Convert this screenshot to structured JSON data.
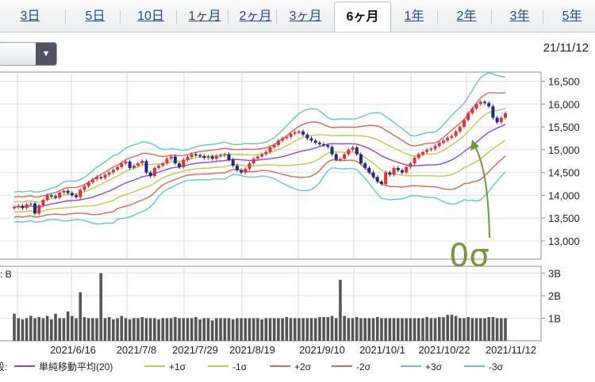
{
  "tabs": [
    {
      "label": "3日",
      "active": false
    },
    {
      "label": "5日",
      "active": false
    },
    {
      "label": "10日",
      "active": false
    },
    {
      "label": "1ヶ月",
      "active": false
    },
    {
      "label": "2ヶ月",
      "active": false
    },
    {
      "label": "3ヶ月",
      "active": false
    },
    {
      "label": "6ヶ月",
      "active": true
    },
    {
      "label": "1年",
      "active": false
    },
    {
      "label": "2年",
      "active": false
    },
    {
      "label": "3年",
      "active": false
    },
    {
      "label": "5年",
      "active": false
    }
  ],
  "dropdown": {
    "arrow_icon": "triangle-down-icon"
  },
  "date_label": "21/11/12",
  "annotation": {
    "text": "0σ",
    "color": "#6f9a3a"
  },
  "legend": {
    "prefix": "段:",
    "items": [
      {
        "label": "単純移動平均(20)",
        "color": "#a040d0"
      },
      {
        "label": "+1σ",
        "color": "#b8d040"
      },
      {
        "label": "-1σ",
        "color": "#b8d040"
      },
      {
        "label": "+2σ",
        "color": "#e06848"
      },
      {
        "label": "-2σ",
        "color": "#e06848"
      },
      {
        "label": "+3σ",
        "color": "#58c8d8"
      },
      {
        "label": "-3σ",
        "color": "#58c8d8"
      }
    ]
  },
  "volume_unit_label": "z: B",
  "chart_data": [
    {
      "type": "candlestick",
      "ylim": [
        12600,
        16700
      ],
      "y_ticks": [
        "16,500",
        "16,000",
        "15,500",
        "15,000",
        "14,500",
        "14,000",
        "13,500",
        "13,000"
      ],
      "y_tick_values": [
        16500,
        16000,
        15500,
        15000,
        14500,
        14000,
        13500,
        13000
      ],
      "x_ticks": [
        "2021/6/16",
        "2021/7/8",
        "2021/7/29",
        "2021/8/19",
        "2021/9/10",
        "2021/10/1",
        "2021/10/22",
        "2021/11/12"
      ],
      "up_color": "#e0303a",
      "down_color": "#1a2a88",
      "close": [
        13740,
        13770,
        13720,
        13800,
        13820,
        13600,
        13780,
        13900,
        14000,
        13980,
        13950,
        14060,
        14100,
        14050,
        14000,
        13960,
        14120,
        14200,
        14280,
        14350,
        14400,
        14380,
        14450,
        14500,
        14560,
        14620,
        14700,
        14740,
        14600,
        14650,
        14700,
        14750,
        14500,
        14420,
        14600,
        14650,
        14700,
        14800,
        14850,
        14700,
        14620,
        14780,
        14840,
        14900,
        14880,
        14860,
        14820,
        14850,
        14800,
        14860,
        14880,
        14900,
        14780,
        14650,
        14550,
        14500,
        14580,
        14700,
        14800,
        14850,
        14900,
        14950,
        15050,
        15100,
        15200,
        15250,
        15280,
        15350,
        15380,
        15400,
        15330,
        15250,
        15200,
        15150,
        15120,
        15100,
        15060,
        14900,
        14780,
        14800,
        14900,
        15000,
        15050,
        14900,
        14700,
        14600,
        14500,
        14400,
        14300,
        14250,
        14500,
        14450,
        14600,
        14550,
        14500,
        14620,
        14700,
        14820,
        14900,
        14950,
        15000,
        15020,
        15080,
        15150,
        15200,
        15260,
        15300,
        15400,
        15500,
        15650,
        15800,
        15900,
        16000,
        16050,
        16020,
        15950,
        15700,
        15600,
        15700,
        15800
      ],
      "volume": [
        1.2,
        1.0,
        0.95,
        1.0,
        1.1,
        1.0,
        1.05,
        1.0,
        1.1,
        0.95,
        1.2,
        1.0,
        1.0,
        1.3,
        1.1,
        1.0,
        2.15,
        1.05,
        1.0,
        1.0,
        1.0,
        3.0,
        1.0,
        1.05,
        0.95,
        1.0,
        1.1,
        1.0,
        0.95,
        1.0,
        1.0,
        1.05,
        1.0,
        1.0,
        1.0,
        0.95,
        1.0,
        1.0,
        1.0,
        1.05,
        1.0,
        1.0,
        1.0,
        1.0,
        1.05,
        0.95,
        1.0,
        1.0,
        0.9,
        1.0,
        1.0,
        1.0,
        1.0,
        0.95,
        1.0,
        1.0,
        1.0,
        1.0,
        1.0,
        1.0,
        0.95,
        1.0,
        1.0,
        1.0,
        1.0,
        1.0,
        1.05,
        1.0,
        1.0,
        1.0,
        1.0,
        1.0,
        1.0,
        1.0,
        1.05,
        1.05,
        1.05,
        1.1,
        1.0,
        2.7,
        1.1,
        1.0,
        1.0,
        1.05,
        1.0,
        1.0,
        1.0,
        1.0,
        1.05,
        1.0,
        1.0,
        1.0,
        1.0,
        1.0,
        1.0,
        1.0,
        1.0,
        1.0,
        1.0,
        1.0,
        1.05,
        1.0,
        1.0,
        1.05,
        1.05,
        1.15,
        1.15,
        1.1,
        1.0,
        1.0,
        1.05,
        1.0,
        1.0,
        1.0,
        1.0,
        1.05,
        1.05,
        1.0,
        1.0,
        1.0
      ]
    },
    {
      "type": "bar",
      "title": "",
      "ylim": [
        0,
        3.3
      ],
      "y_ticks": [
        "3B",
        "2B",
        "1B"
      ],
      "y_tick_values": [
        3,
        2,
        1
      ]
    }
  ]
}
